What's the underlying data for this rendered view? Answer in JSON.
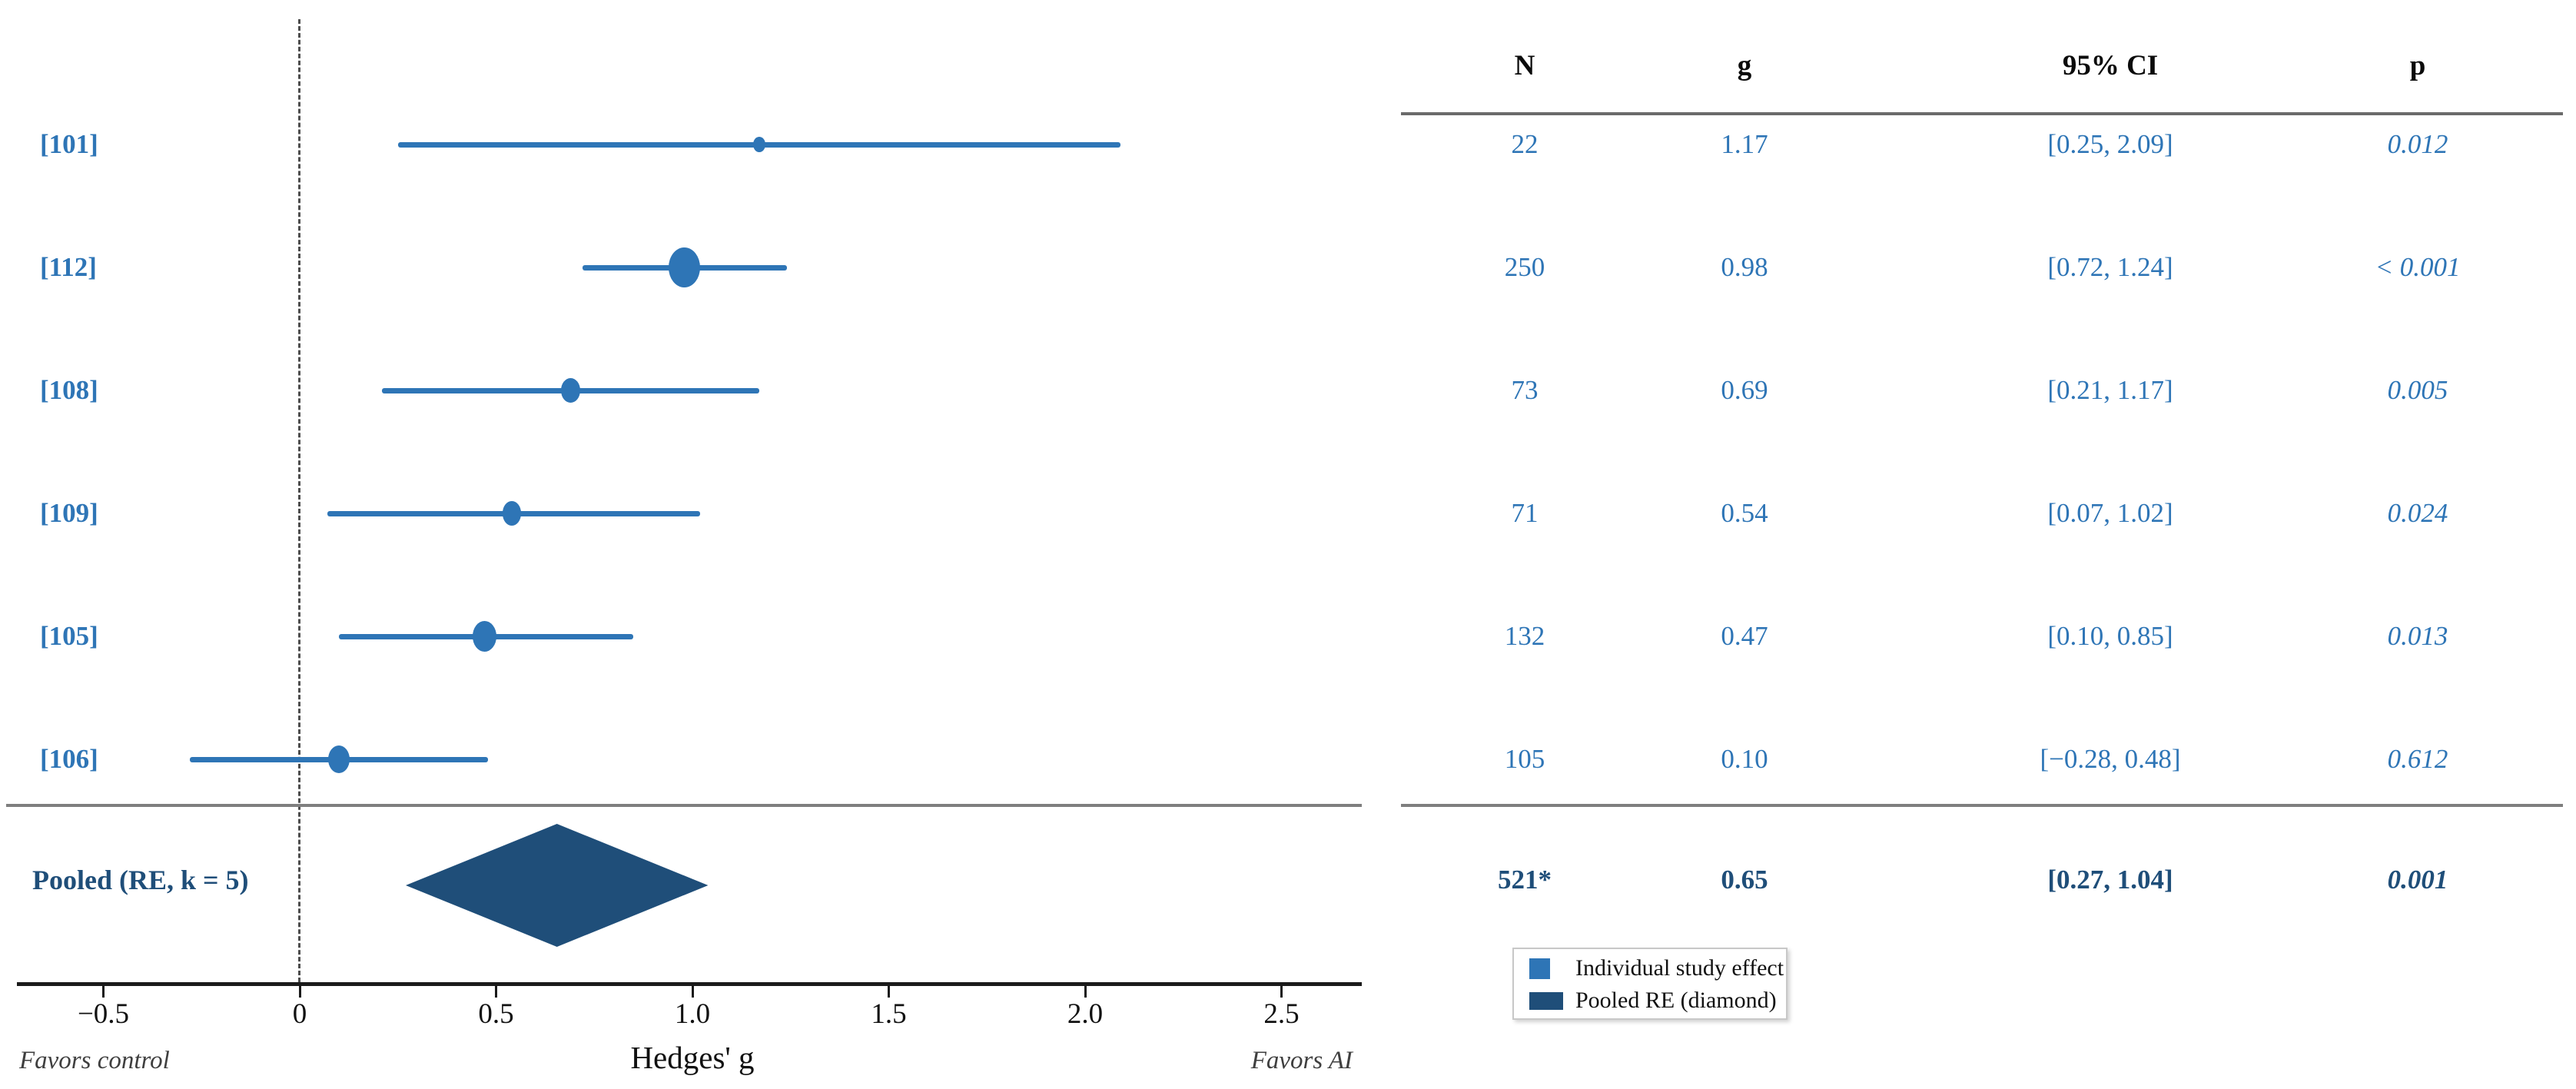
{
  "chart_data": {
    "type": "forest",
    "title": "",
    "xlabel": "Hedges' g",
    "x_axis": {
      "ticks": [
        -0.5,
        0,
        0.5,
        1.0,
        1.5,
        2.0,
        2.5
      ],
      "tick_labels": [
        "−0.5",
        "0",
        "0.5",
        "1.0",
        "1.5",
        "2.0",
        "2.5"
      ],
      "range": [
        -0.72,
        2.72
      ],
      "zero_line": 0
    },
    "direction_labels": {
      "left": "Favors control",
      "right": "Favors AI"
    },
    "table_headers": {
      "n": "N",
      "g": "g",
      "ci": "95% CI",
      "p": "p"
    },
    "studies": [
      {
        "label": "[101]",
        "n": 22,
        "n_label": "22",
        "g": 1.17,
        "g_label": "1.17",
        "ci": [
          0.25,
          2.09
        ],
        "ci_label": "[0.25, 2.09]",
        "p_label": "0.012"
      },
      {
        "label": "[112]",
        "n": 250,
        "n_label": "250",
        "g": 0.98,
        "g_label": "0.98",
        "ci": [
          0.72,
          1.24
        ],
        "ci_label": "[0.72, 1.24]",
        "p_label": "< 0.001"
      },
      {
        "label": "[108]",
        "n": 73,
        "n_label": "73",
        "g": 0.69,
        "g_label": "0.69",
        "ci": [
          0.21,
          1.17
        ],
        "ci_label": "[0.21, 1.17]",
        "p_label": "0.005"
      },
      {
        "label": "[109]",
        "n": 71,
        "n_label": "71",
        "g": 0.54,
        "g_label": "0.54",
        "ci": [
          0.07,
          1.02
        ],
        "ci_label": "[0.07, 1.02]",
        "p_label": "0.024"
      },
      {
        "label": "[105]",
        "n": 132,
        "n_label": "132",
        "g": 0.47,
        "g_label": "0.47",
        "ci": [
          0.1,
          0.85
        ],
        "ci_label": "[0.10, 0.85]",
        "p_label": "0.013"
      },
      {
        "label": "[106]",
        "n": 105,
        "n_label": "105",
        "g": 0.1,
        "g_label": "0.10",
        "ci": [
          -0.28,
          0.48
        ],
        "ci_label": "[−0.28, 0.48]",
        "p_label": "0.612"
      }
    ],
    "pooled": {
      "label": "Pooled (RE, k = 5)",
      "n_label": "521*",
      "g": 0.65,
      "g_label": "0.65",
      "ci": [
        0.27,
        1.04
      ],
      "ci_label": "[0.27, 1.04]",
      "p_label": "0.001"
    },
    "legend": [
      {
        "swatch": "study",
        "label": "Individual study effect"
      },
      {
        "swatch": "pooled",
        "label": "Pooled RE (diamond)"
      }
    ],
    "colors": {
      "study": "#2E75B6",
      "pooled": "#1F4E79",
      "axis": "#1a1a1a",
      "separator": "#7f7f7f",
      "rule": "#6a6a6a",
      "direction_text": "#3f3f3f"
    }
  }
}
